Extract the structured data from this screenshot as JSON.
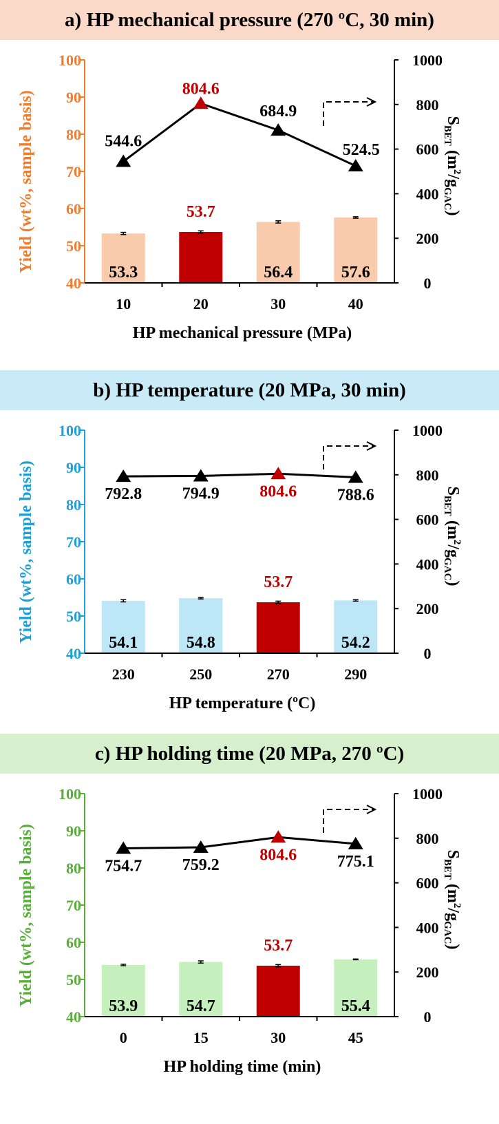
{
  "colors": {
    "highlight": "#c00000",
    "line": "#000000",
    "panel_a": {
      "banner": "#fad9c8",
      "bar": "#f8cbad",
      "axis": "#ed7d31"
    },
    "panel_b": {
      "banner": "#c9ebf8",
      "bar": "#bde6f7",
      "axis": "#1f9fd4"
    },
    "panel_c": {
      "banner": "#d6f0cd",
      "bar": "#c6efbe",
      "axis": "#5aac3c"
    }
  },
  "chart_data": [
    {
      "type": "bar+line",
      "title": "a) HP mechanical pressure (270 ºC, 30 min)",
      "xlabel": "HP mechanical pressure (MPa)",
      "ylabel_left": "Yield (wt%, sample basis)",
      "ylabel_right_main": "S",
      "ylabel_right_sub": "BET",
      "ylabel_right_rest": "(m",
      "ylabel_right_sup": "2",
      "ylabel_right_slash": "/g",
      "ylabel_right_sub2": "GAC",
      "ylabel_right_end": ")",
      "categories": [
        "10",
        "20",
        "30",
        "40"
      ],
      "highlight_index": 1,
      "yield": [
        53.3,
        53.7,
        56.4,
        57.6
      ],
      "yield_err": [
        0.3,
        0.3,
        0.3,
        0.2
      ],
      "yield_labels": [
        "53.3",
        "53.7",
        "56.4",
        "57.6"
      ],
      "sbet": [
        544.6,
        804.6,
        684.9,
        524.5
      ],
      "sbet_labels": [
        "544.6",
        "804.6",
        "684.9",
        "524.5"
      ],
      "sbet_label_pos": [
        "above",
        "above",
        "above",
        "above"
      ],
      "ylim_left": [
        40,
        100
      ],
      "ylim_right": [
        0,
        1000
      ],
      "yticks_left": [
        "40",
        "50",
        "60",
        "70",
        "80",
        "90",
        "100"
      ],
      "yticks_right": [
        "0",
        "200",
        "400",
        "600",
        "800",
        "1000"
      ]
    },
    {
      "type": "bar+line",
      "title": "b) HP temperature (20 MPa, 30 min)",
      "xlabel": "HP temperature (ºC)",
      "ylabel_left": "Yield (wt%, sample basis)",
      "ylabel_right_main": "S",
      "ylabel_right_sub": "BET",
      "ylabel_right_rest": "(m",
      "ylabel_right_sup": "2",
      "ylabel_right_slash": "/g",
      "ylabel_right_sub2": "GAC",
      "ylabel_right_end": ")",
      "categories": [
        "230",
        "250",
        "270",
        "290"
      ],
      "highlight_index": 2,
      "yield": [
        54.1,
        54.8,
        53.7,
        54.2
      ],
      "yield_err": [
        0.3,
        0.2,
        0.3,
        0.2
      ],
      "yield_labels": [
        "54.1",
        "54.8",
        "53.7",
        "54.2"
      ],
      "sbet": [
        792.8,
        794.9,
        804.6,
        788.6
      ],
      "sbet_labels": [
        "792.8",
        "794.9",
        "804.6",
        "788.6"
      ],
      "sbet_label_pos": [
        "below",
        "below",
        "below",
        "below"
      ],
      "ylim_left": [
        40,
        100
      ],
      "ylim_right": [
        0,
        1000
      ],
      "yticks_left": [
        "40",
        "50",
        "60",
        "70",
        "80",
        "90",
        "100"
      ],
      "yticks_right": [
        "0",
        "200",
        "400",
        "600",
        "800",
        "1000"
      ]
    },
    {
      "type": "bar+line",
      "title": "c) HP holding time (20 MPa, 270 ºC)",
      "xlabel": "HP holding time (min)",
      "ylabel_left": "Yield (wt%, sample basis)",
      "ylabel_right_main": "S",
      "ylabel_right_sub": "BET",
      "ylabel_right_rest": "(m",
      "ylabel_right_sup": "2",
      "ylabel_right_slash": "/g",
      "ylabel_right_sub2": "GAC",
      "ylabel_right_end": ")",
      "categories": [
        "0",
        "15",
        "30",
        "45"
      ],
      "highlight_index": 2,
      "yield": [
        53.9,
        54.7,
        53.7,
        55.4
      ],
      "yield_err": [
        0.2,
        0.3,
        0.3,
        0.1
      ],
      "yield_labels": [
        "53.9",
        "54.7",
        "53.7",
        "55.4"
      ],
      "sbet": [
        754.7,
        759.2,
        804.6,
        775.1
      ],
      "sbet_labels": [
        "754.7",
        "759.2",
        "804.6",
        "775.1"
      ],
      "sbet_label_pos": [
        "below",
        "below",
        "below",
        "below"
      ],
      "ylim_left": [
        40,
        100
      ],
      "ylim_right": [
        0,
        1000
      ],
      "yticks_left": [
        "40",
        "50",
        "60",
        "70",
        "80",
        "90",
        "100"
      ],
      "yticks_right": [
        "0",
        "200",
        "400",
        "600",
        "800",
        "1000"
      ]
    }
  ]
}
